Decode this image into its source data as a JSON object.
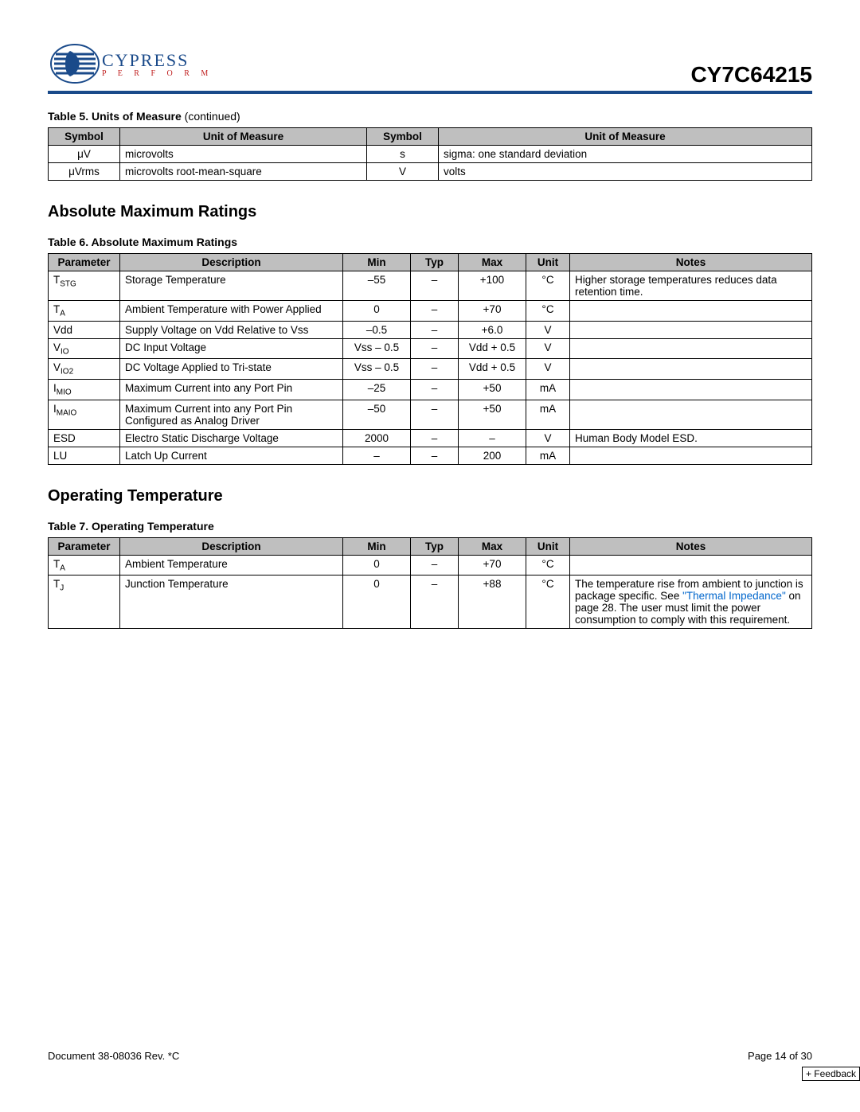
{
  "header": {
    "brand": "CYPRESS",
    "tagline": "P E R F O R M",
    "part_number": "CY7C64215"
  },
  "table5": {
    "caption_bold": "Table 5.  Units of Measure",
    "caption_rest": " (continued)",
    "headers": [
      "Symbol",
      "Unit of Measure",
      "Symbol",
      "Unit of Measure"
    ],
    "rows": [
      {
        "s1": "μV",
        "u1": "microvolts",
        "s2": "s",
        "u2": "sigma: one standard deviation"
      },
      {
        "s1": "μVrms",
        "u1": "microvolts root-mean-square",
        "s2": "V",
        "u2": "volts"
      }
    ]
  },
  "sec1_title": "Absolute Maximum Ratings",
  "table6": {
    "caption": "Table 6.  Absolute Maximum Ratings",
    "headers": [
      "Parameter",
      "Description",
      "Min",
      "Typ",
      "Max",
      "Unit",
      "Notes"
    ],
    "rows": [
      {
        "param_pre": "T",
        "param_sub": "STG",
        "desc": "Storage Temperature",
        "min": "–55",
        "typ": "–",
        "max": "+100",
        "unit": "°C",
        "notes": "Higher storage temperatures reduces data retention time."
      },
      {
        "param_pre": "T",
        "param_sub": "A",
        "desc": "Ambient Temperature with Power Applied",
        "min": "0",
        "typ": "–",
        "max": "+70",
        "unit": "°C",
        "notes": ""
      },
      {
        "param_pre": "Vdd",
        "param_sub": "",
        "desc": "Supply Voltage on Vdd Relative to Vss",
        "min": "–0.5",
        "typ": "–",
        "max": "+6.0",
        "unit": "V",
        "notes": ""
      },
      {
        "param_pre": "V",
        "param_sub": "IO",
        "desc": "DC Input Voltage",
        "min": "Vss – 0.5",
        "typ": "–",
        "max": "Vdd + 0.5",
        "unit": "V",
        "notes": ""
      },
      {
        "param_pre": "V",
        "param_sub": "IO2",
        "desc": "DC Voltage Applied to Tri-state",
        "min": "Vss – 0.5",
        "typ": "–",
        "max": "Vdd + 0.5",
        "unit": "V",
        "notes": ""
      },
      {
        "param_pre": "I",
        "param_sub": "MIO",
        "desc": "Maximum Current into any Port Pin",
        "min": "–25",
        "typ": "–",
        "max": "+50",
        "unit": "mA",
        "notes": ""
      },
      {
        "param_pre": "I",
        "param_sub": "MAIO",
        "desc": "Maximum Current into any Port Pin Configured as Analog Driver",
        "min": "–50",
        "typ": "–",
        "max": "+50",
        "unit": "mA",
        "notes": ""
      },
      {
        "param_pre": "ESD",
        "param_sub": "",
        "desc": "Electro Static Discharge Voltage",
        "min": "2000",
        "typ": "–",
        "max": "–",
        "unit": "V",
        "notes": "Human Body Model ESD."
      },
      {
        "param_pre": "LU",
        "param_sub": "",
        "desc": "Latch Up Current",
        "min": "–",
        "typ": "–",
        "max": "200",
        "unit": "mA",
        "notes": ""
      }
    ]
  },
  "sec2_title": "Operating Temperature",
  "table7": {
    "caption": "Table 7.  Operating Temperature",
    "headers": [
      "Parameter",
      "Description",
      "Min",
      "Typ",
      "Max",
      "Unit",
      "Notes"
    ],
    "rows": [
      {
        "param_pre": "T",
        "param_sub": "A",
        "desc": "Ambient Temperature",
        "min": "0",
        "typ": "–",
        "max": "+70",
        "unit": "°C",
        "notes_before": "",
        "notes_link": "",
        "notes_after": ""
      },
      {
        "param_pre": "T",
        "param_sub": "J",
        "desc": "Junction Temperature",
        "min": "0",
        "typ": "–",
        "max": "+88",
        "unit": "°C",
        "notes_before": "The temperature rise from ambient to junction is package specific. See ",
        "notes_link": "\"Thermal Impedance\"",
        "notes_after": " on page 28. The user must limit the power consumption to comply with this requirement."
      }
    ]
  },
  "footer": {
    "doc": "Document 38-08036 Rev. *C",
    "page": "Page 14 of 30",
    "feedback": "+ Feedback"
  }
}
